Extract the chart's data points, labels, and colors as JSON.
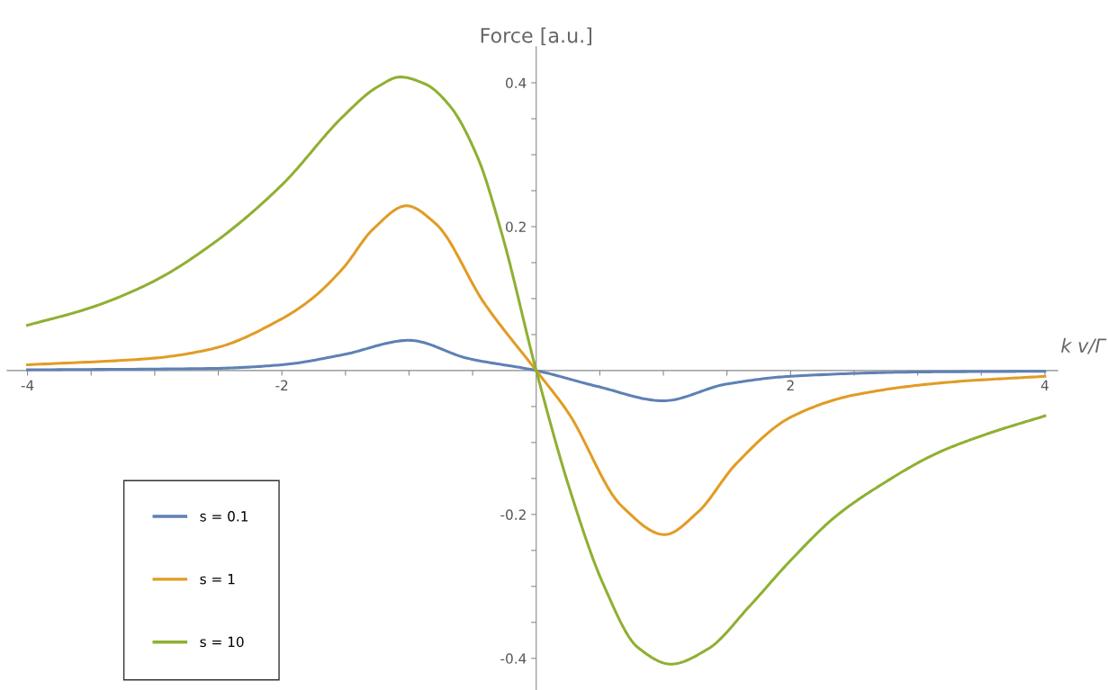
{
  "chart_data": {
    "type": "line",
    "ylabel": "Force [a.u.]",
    "xlabel": "k v/Γ",
    "xlim": [
      -4.16,
      4.1
    ],
    "ylim": [
      -0.444,
      0.45
    ],
    "xticks": [
      -4,
      {
        "value": -3.5,
        "label": null
      },
      {
        "value": -3,
        "label": null
      },
      {
        "value": -2.5,
        "label": null
      },
      -2,
      {
        "value": -1.5,
        "label": null
      },
      {
        "value": -1,
        "label": null
      },
      {
        "value": -0.5,
        "label": null
      },
      {
        "value": 0.5,
        "label": null
      },
      {
        "value": 1,
        "label": null
      },
      {
        "value": 1.5,
        "label": null
      },
      2,
      {
        "value": 2.5,
        "label": null
      },
      {
        "value": 3,
        "label": null
      },
      {
        "value": 3.5,
        "label": null
      },
      4
    ],
    "yticks": [
      -0.4,
      {
        "value": -0.35,
        "label": null
      },
      {
        "value": -0.3,
        "label": null
      },
      {
        "value": -0.25,
        "label": null
      },
      -0.2,
      {
        "value": -0.15,
        "label": null
      },
      {
        "value": -0.1,
        "label": null
      },
      {
        "value": -0.05,
        "label": null
      },
      {
        "value": 0.05,
        "label": null
      },
      {
        "value": 0.1,
        "label": null
      },
      {
        "value": 0.15,
        "label": null
      },
      0.2,
      {
        "value": 0.25,
        "label": null
      },
      {
        "value": 0.3,
        "label": null
      },
      {
        "value": 0.35,
        "label": null
      },
      0.4
    ],
    "grid": false,
    "legend": "bottom left",
    "marker": "none",
    "line_style": "solid",
    "series": [
      {
        "name": "s = 0.1",
        "color": "#5e81b5",
        "x": [
          -4,
          -2.53,
          -2,
          -1.52,
          -1,
          -0.54,
          0,
          0.48,
          1,
          1.49,
          2,
          2.99,
          4
        ],
        "values": [
          0.001,
          0.003,
          0.008,
          0.022,
          0.042,
          0.017,
          0,
          -0.022,
          -0.042,
          -0.019,
          -0.008,
          -0.002,
          -0.001
        ]
      },
      {
        "name": "s = 1",
        "color": "#e19c24",
        "x": [
          -4,
          -3.02,
          -2.53,
          -2,
          -1.77,
          -1.52,
          -1.28,
          -1.02,
          -0.79,
          -0.41,
          0,
          0.25,
          0.67,
          1.01,
          1.27,
          1.57,
          2,
          2.5,
          3.26,
          4
        ],
        "values": [
          0.008,
          0.017,
          0.031,
          0.072,
          0.099,
          0.142,
          0.197,
          0.229,
          0.204,
          0.094,
          0,
          -0.058,
          -0.188,
          -0.228,
          -0.197,
          -0.13,
          -0.065,
          -0.034,
          -0.016,
          -0.008
        ]
      },
      {
        "name": "s = 10",
        "color": "#8fb032",
        "x": [
          -4,
          -3.51,
          -3.02,
          -2.53,
          -2,
          -1.52,
          -1.25,
          -1.07,
          -0.87,
          -0.68,
          -0.46,
          -0.27,
          0,
          0.26,
          0.53,
          0.8,
          1.06,
          1.35,
          1.68,
          2,
          2.36,
          2.71,
          3.15,
          3.53,
          4
        ],
        "values": [
          0.063,
          0.087,
          0.123,
          0.178,
          0.258,
          0.353,
          0.394,
          0.408,
          0.398,
          0.368,
          0.296,
          0.19,
          0,
          -0.163,
          -0.298,
          -0.385,
          -0.408,
          -0.387,
          -0.327,
          -0.264,
          -0.202,
          -0.159,
          -0.115,
          -0.089,
          -0.063
        ]
      }
    ]
  }
}
